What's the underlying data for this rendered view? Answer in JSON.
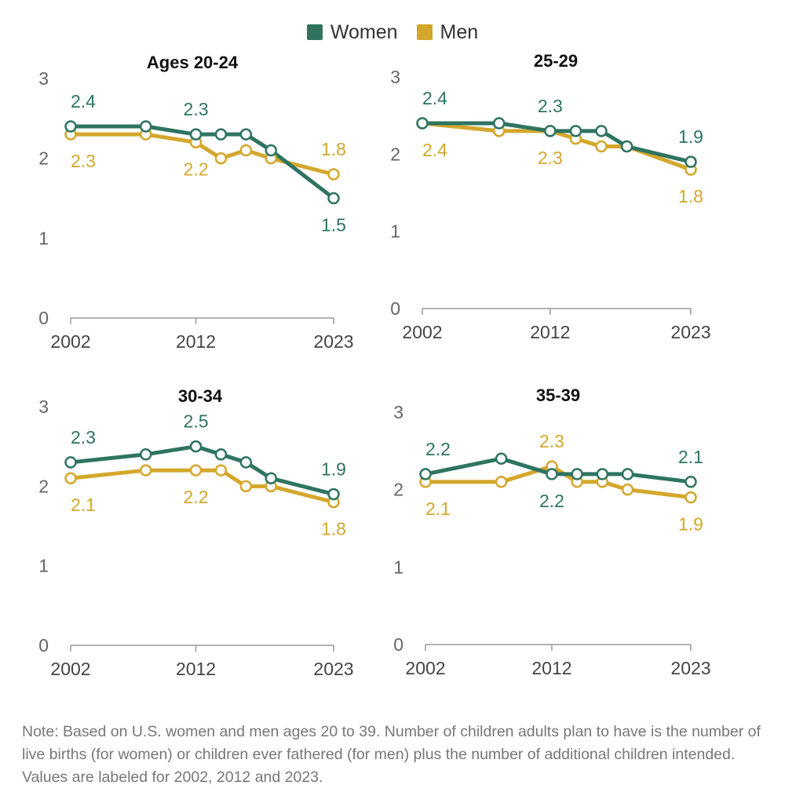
{
  "legend": [
    {
      "name": "Women",
      "color": "#2e7461"
    },
    {
      "name": "Men",
      "color": "#d4a72c"
    }
  ],
  "chart_data": [
    {
      "type": "line",
      "title": "Ages 20-24",
      "x": [
        2002,
        2008,
        2012,
        2014,
        2016,
        2018,
        2023
      ],
      "x_ticks": [
        "2002",
        "2012",
        "2023"
      ],
      "y_ticks": [
        "0",
        "1",
        "2",
        "3"
      ],
      "ylim": [
        0,
        3
      ],
      "series": [
        {
          "name": "Women",
          "values": [
            2.4,
            2.4,
            2.3,
            2.3,
            2.3,
            2.1,
            1.5
          ],
          "labels": [
            "2.4",
            "2.3",
            "1.5"
          ]
        },
        {
          "name": "Men",
          "values": [
            2.3,
            2.3,
            2.2,
            2.0,
            2.1,
            2.0,
            1.8
          ],
          "labels": [
            "2.3",
            "2.2",
            "1.8"
          ]
        }
      ]
    },
    {
      "type": "line",
      "title": "25-29",
      "x": [
        2002,
        2008,
        2012,
        2014,
        2016,
        2018,
        2023
      ],
      "x_ticks": [
        "2002",
        "2012",
        "2023"
      ],
      "y_ticks": [
        "0",
        "1",
        "2",
        "3"
      ],
      "ylim": [
        0,
        3
      ],
      "series": [
        {
          "name": "Women",
          "values": [
            2.4,
            2.4,
            2.3,
            2.3,
            2.3,
            2.1,
            1.9
          ],
          "labels": [
            "2.4",
            "2.3",
            "1.9"
          ]
        },
        {
          "name": "Men",
          "values": [
            2.4,
            2.3,
            2.3,
            2.2,
            2.1,
            2.1,
            1.8
          ],
          "labels": [
            "2.4",
            "2.3",
            "1.8"
          ]
        }
      ]
    },
    {
      "type": "line",
      "title": "30-34",
      "x": [
        2002,
        2008,
        2012,
        2014,
        2016,
        2018,
        2023
      ],
      "x_ticks": [
        "2002",
        "2012",
        "2023"
      ],
      "y_ticks": [
        "0",
        "1",
        "2",
        "3"
      ],
      "ylim": [
        0,
        3
      ],
      "series": [
        {
          "name": "Women",
          "values": [
            2.3,
            2.4,
            2.5,
            2.4,
            2.3,
            2.1,
            1.9
          ],
          "labels": [
            "2.3",
            "2.5",
            "1.9"
          ]
        },
        {
          "name": "Men",
          "values": [
            2.1,
            2.2,
            2.2,
            2.2,
            2.0,
            2.0,
            1.8
          ],
          "labels": [
            "2.1",
            "2.2",
            "1.8"
          ]
        }
      ]
    },
    {
      "type": "line",
      "title": "35-39",
      "x": [
        2002,
        2008,
        2012,
        2014,
        2016,
        2018,
        2023
      ],
      "x_ticks": [
        "2002",
        "2012",
        "2023"
      ],
      "y_ticks": [
        "0",
        "1",
        "2",
        "3"
      ],
      "ylim": [
        0,
        3
      ],
      "series": [
        {
          "name": "Women",
          "values": [
            2.2,
            2.4,
            2.2,
            2.2,
            2.2,
            2.2,
            2.1
          ],
          "labels": [
            "2.2",
            "2.2",
            "2.1"
          ]
        },
        {
          "name": "Men",
          "values": [
            2.1,
            2.1,
            2.3,
            2.1,
            2.1,
            2.0,
            1.9
          ],
          "labels": [
            "2.1",
            "2.3",
            "1.9"
          ]
        }
      ]
    }
  ],
  "note": "Note: Based on U.S. women and men ages 20 to 39. Number of children adults plan to have is the number of live births (for women) or children ever fathered (for men) plus the number of additional children intended. Values are labeled for 2002, 2012 and 2023."
}
